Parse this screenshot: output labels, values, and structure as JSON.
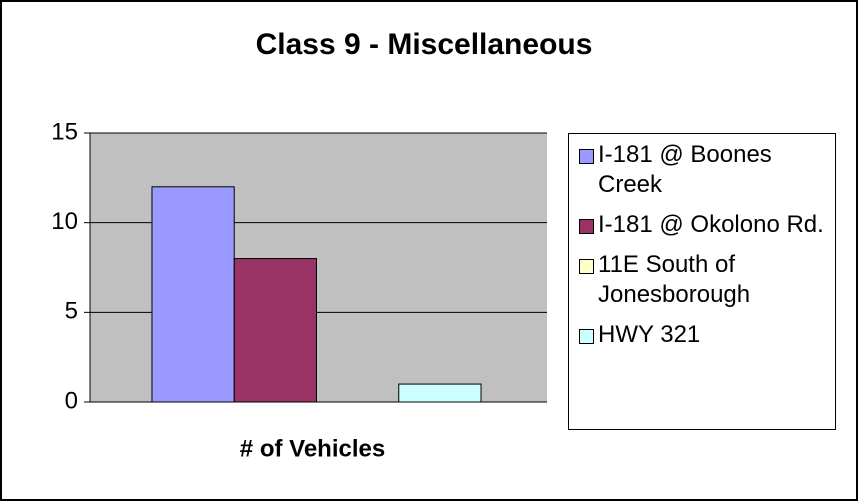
{
  "chart_data": {
    "type": "bar",
    "title": "Class 9 - Miscellaneous",
    "categories": [
      "# of Vehicles"
    ],
    "series": [
      {
        "name": "I-181 @ Boones Creek",
        "color": "#9999ff",
        "values": [
          12
        ]
      },
      {
        "name": "I-181 @ Okolono Rd.",
        "color": "#993366",
        "values": [
          8
        ]
      },
      {
        "name": "11E South of Jonesborough",
        "color": "#ffffcc",
        "values": [
          0
        ]
      },
      {
        "name": "HWY 321",
        "color": "#ccffff",
        "values": [
          1
        ]
      }
    ],
    "ylim": [
      0,
      15
    ],
    "yticks": [
      0,
      5,
      10,
      15
    ],
    "grid": true,
    "legend": "right"
  }
}
